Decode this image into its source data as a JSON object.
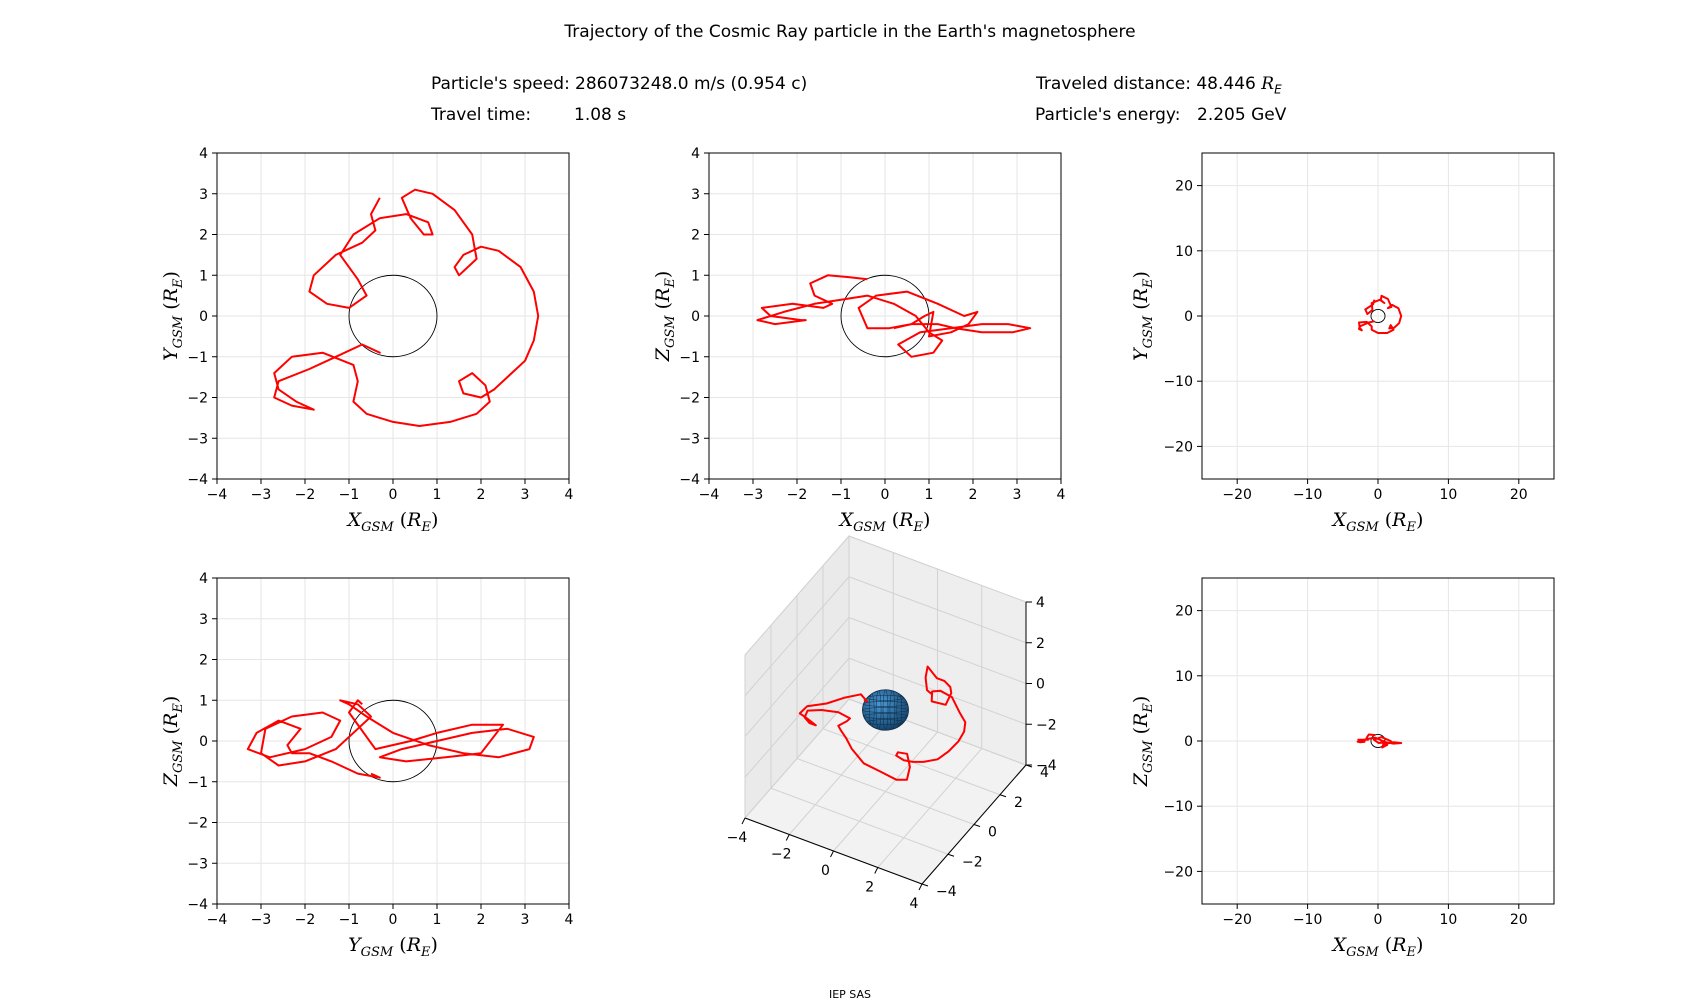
{
  "figure": {
    "title": "Trajectory of the Cosmic Ray particle in the Earth's magnetosphere",
    "speed_label": "Particle's speed:",
    "speed_value": "286073248.0 m/s (0.954 c)",
    "time_label": "Travel time:",
    "time_value": "1.08 s",
    "distance_label": "Traveled distance:",
    "distance_value": "48.446",
    "distance_unit": "R",
    "distance_unit_sub": "E",
    "energy_label": "Particle's energy:",
    "energy_value": "2.205 GeV",
    "footer": "IEP SAS"
  },
  "colors": {
    "trajectory": "#ff0000",
    "earth_fill": "#1f77b4",
    "earth_outline": "#000000",
    "grid": "#e6e6e6",
    "pane": "#f2f2f2"
  },
  "chart_data": [
    {
      "type": "line",
      "projection": "XY",
      "xlabel": "X_GSM (R_E)",
      "ylabel": "Y_GSM (R_E)",
      "xlim": [
        -4,
        4
      ],
      "ylim": [
        -4,
        4
      ],
      "xticks": [
        -4,
        -3,
        -2,
        -1,
        0,
        1,
        2,
        3,
        4
      ],
      "yticks": [
        -4,
        -3,
        -2,
        -1,
        0,
        1,
        2,
        3,
        4
      ],
      "grid": true,
      "earth_circle_radius": 1,
      "series": [
        {
          "x": [
            -0.5,
            -0.3,
            -0.7,
            -1.3,
            -1.9,
            -2.6,
            -2.7,
            -2.3,
            -1.8,
            -2.2,
            -2.6,
            -2.7,
            -2.3,
            -1.6,
            -0.9,
            -0.8,
            -0.9,
            -0.6,
            -0.3,
            0.0,
            0.6,
            1.3,
            1.9,
            2.2,
            2.1,
            1.8,
            1.5,
            1.6,
            2.0,
            2.3,
            2.6,
            3.0,
            3.2,
            3.3,
            3.2,
            2.9,
            2.4,
            2.0,
            1.6,
            1.4,
            1.5,
            1.9,
            1.8,
            1.4,
            0.9,
            0.5,
            0.2,
            0.4,
            0.7,
            0.9,
            0.8,
            0.3,
            -0.3,
            -0.9,
            -1.2,
            -0.8,
            -0.6,
            -1.0,
            -1.5,
            -1.9,
            -1.8,
            -1.3,
            -0.7,
            -0.4,
            -0.5,
            -0.3
          ],
          "y": [
            -0.8,
            -0.9,
            -0.7,
            -1.0,
            -1.3,
            -1.6,
            -2.0,
            -2.2,
            -2.3,
            -2.1,
            -1.8,
            -1.4,
            -1.0,
            -0.9,
            -1.2,
            -1.6,
            -2.1,
            -2.4,
            -2.5,
            -2.6,
            -2.7,
            -2.6,
            -2.4,
            -2.1,
            -1.7,
            -1.4,
            -1.6,
            -1.9,
            -2.0,
            -1.8,
            -1.5,
            -1.1,
            -0.6,
            0.0,
            0.6,
            1.2,
            1.6,
            1.7,
            1.5,
            1.2,
            1.0,
            1.4,
            2.0,
            2.6,
            3.0,
            3.1,
            2.9,
            2.4,
            2.0,
            2.0,
            2.3,
            2.5,
            2.4,
            2.0,
            1.5,
            0.9,
            0.5,
            0.2,
            0.3,
            0.6,
            1.0,
            1.5,
            1.8,
            2.1,
            2.5,
            2.9
          ]
        }
      ]
    },
    {
      "type": "line",
      "projection": "XZ",
      "xlabel": "X_GSM (R_E)",
      "ylabel": "Z_GSM (R_E)",
      "xlim": [
        -4,
        4
      ],
      "ylim": [
        -4,
        4
      ],
      "xticks": [
        -4,
        -3,
        -2,
        -1,
        0,
        1,
        2,
        3,
        4
      ],
      "yticks": [
        -4,
        -3,
        -2,
        -1,
        0,
        1,
        2,
        3,
        4
      ],
      "grid": true,
      "earth_circle_radius": 1,
      "series": [
        {
          "x": [
            -0.4,
            -0.8,
            -1.3,
            -1.7,
            -1.6,
            -1.2,
            -1.4,
            -2.1,
            -2.8,
            -2.6,
            -1.9,
            -1.8,
            -2.5,
            -2.9,
            -2.3,
            -1.6,
            -1.0,
            -0.4,
            0.2,
            0.7,
            1.0,
            1.3,
            1.1,
            0.6,
            0.3,
            0.8,
            1.5,
            2.2,
            2.8,
            3.3,
            2.9,
            2.2,
            1.6,
            1.2,
            0.6,
            0.1,
            -0.4,
            -0.6,
            -0.2,
            0.5,
            1.2,
            1.8,
            2.1,
            1.9,
            1.5,
            1.0,
            1.1,
            0.9,
            0.6,
            0.2
          ],
          "y": [
            0.9,
            0.95,
            1.0,
            0.8,
            0.5,
            0.3,
            0.2,
            0.3,
            0.2,
            0.0,
            -0.1,
            -0.1,
            -0.2,
            -0.1,
            0.1,
            0.3,
            0.4,
            0.5,
            0.3,
            0.0,
            -0.4,
            -0.6,
            -0.9,
            -1.0,
            -0.7,
            -0.4,
            -0.3,
            -0.2,
            -0.2,
            -0.3,
            -0.4,
            -0.4,
            -0.3,
            -0.2,
            -0.2,
            -0.3,
            -0.3,
            0.2,
            0.5,
            0.6,
            0.3,
            0.0,
            0.1,
            -0.2,
            -0.4,
            -0.5,
            0.1,
            0.0,
            -0.2,
            -0.3
          ]
        }
      ]
    },
    {
      "type": "line",
      "projection": "XY-wide",
      "xlabel": "X_GSM (R_E)",
      "ylabel": "Y_GSM (R_E)",
      "xlim": [
        -25,
        25
      ],
      "ylim": [
        -25,
        25
      ],
      "xticks": [
        -20,
        -10,
        0,
        10,
        20
      ],
      "yticks": [
        -20,
        -10,
        0,
        10,
        20
      ],
      "grid": true,
      "earth_circle_radius": 1,
      "series": [
        {
          "x": [
            -0.5,
            -1.3,
            -2.6,
            -2.7,
            -2.3,
            -2.6,
            -2.7,
            -1.6,
            -0.9,
            -0.9,
            0.0,
            1.3,
            2.2,
            1.8,
            1.6,
            2.3,
            3.0,
            3.3,
            2.9,
            2.0,
            1.4,
            1.9,
            1.4,
            0.5,
            0.4,
            0.9,
            0.3,
            -0.9,
            -0.8,
            -1.5,
            -1.8,
            -0.7,
            -0.5
          ],
          "y": [
            -0.8,
            -1.0,
            -1.6,
            -2.0,
            -2.2,
            -1.8,
            -1.0,
            -0.9,
            -1.6,
            -2.1,
            -2.6,
            -2.6,
            -2.1,
            -1.4,
            -1.9,
            -1.8,
            -1.1,
            0.0,
            1.2,
            1.7,
            1.2,
            1.4,
            2.6,
            3.1,
            2.4,
            2.0,
            2.5,
            2.0,
            0.9,
            0.3,
            1.0,
            1.8,
            2.5
          ]
        }
      ]
    },
    {
      "type": "line",
      "projection": "YZ",
      "xlabel": "Y_GSM (R_E)",
      "ylabel": "Z_GSM (R_E)",
      "xlim": [
        -4,
        4
      ],
      "ylim": [
        -4,
        4
      ],
      "xticks": [
        -4,
        -3,
        -2,
        -1,
        0,
        1,
        2,
        3,
        4
      ],
      "yticks": [
        -4,
        -3,
        -2,
        -1,
        0,
        1,
        2,
        3,
        4
      ],
      "grid": true,
      "earth_circle_radius": 1,
      "series": [
        {
          "x": [
            -0.5,
            -0.3,
            -0.8,
            -1.4,
            -1.9,
            -2.3,
            -2.4,
            -2.1,
            -2.6,
            -3.1,
            -3.3,
            -2.8,
            -2.0,
            -1.4,
            -1.2,
            -1.6,
            -2.3,
            -2.9,
            -3.0,
            -2.6,
            -2.0,
            -1.3,
            -0.8,
            -0.5,
            -0.8,
            -1.2,
            -1.0,
            -0.6,
            0.0,
            0.8,
            1.6,
            2.4,
            3.1,
            3.2,
            2.6,
            1.8,
            1.0,
            0.2,
            -0.3,
            0.3,
            1.2,
            2.0,
            2.5,
            1.8,
            1.0,
            0.4,
            -0.4,
            -1.0,
            -0.8,
            -0.7
          ],
          "y": [
            -0.8,
            -0.9,
            -0.8,
            -0.5,
            -0.3,
            -0.3,
            -0.1,
            0.3,
            0.5,
            0.2,
            -0.2,
            -0.4,
            -0.2,
            0.1,
            0.5,
            0.7,
            0.6,
            0.3,
            -0.3,
            -0.6,
            -0.5,
            -0.2,
            0.3,
            0.6,
            0.9,
            1.0,
            0.9,
            0.6,
            0.2,
            -0.1,
            -0.3,
            -0.4,
            -0.2,
            0.1,
            0.3,
            0.2,
            0.0,
            -0.2,
            -0.4,
            -0.5,
            -0.4,
            -0.3,
            0.4,
            0.4,
            0.2,
            0.0,
            -0.2,
            0.7,
            1.0,
            0.9
          ]
        }
      ]
    },
    {
      "type": "line",
      "projection": "3D",
      "xticks": [
        -4,
        -2,
        0,
        2,
        4
      ],
      "yticks": [
        -4,
        -2,
        0,
        2,
        4
      ],
      "zticks": [
        -4,
        -2,
        0,
        2,
        4
      ],
      "xlim": [
        -4,
        4
      ],
      "ylim": [
        -4,
        4
      ],
      "zlim": [
        -4,
        4
      ],
      "grid": true,
      "earth_sphere_radius": 1
    },
    {
      "type": "line",
      "projection": "XZ-wide",
      "xlabel": "X_GSM (R_E)",
      "ylabel": "Z_GSM (R_E)",
      "xlim": [
        -25,
        25
      ],
      "ylim": [
        -25,
        25
      ],
      "xticks": [
        -20,
        -10,
        0,
        10,
        20
      ],
      "yticks": [
        -20,
        -10,
        0,
        10,
        20
      ],
      "grid": true,
      "earth_circle_radius": 1,
      "series": [
        {
          "x": [
            -0.4,
            -1.3,
            -1.6,
            -1.4,
            -2.8,
            -1.9,
            -2.5,
            -2.9,
            -1.6,
            -0.4,
            0.7,
            1.3,
            0.6,
            0.8,
            2.2,
            3.3,
            2.2,
            1.2,
            0.1,
            -0.6,
            0.5,
            1.8,
            1.9,
            1.0,
            0.9,
            0.2
          ],
          "y": [
            0.9,
            1.0,
            0.5,
            0.2,
            0.2,
            -0.1,
            -0.2,
            -0.1,
            0.3,
            0.5,
            0.0,
            -0.6,
            -1.0,
            -0.4,
            -0.2,
            -0.3,
            -0.4,
            -0.2,
            -0.3,
            0.2,
            0.6,
            0.0,
            -0.2,
            -0.5,
            0.0,
            -0.3
          ]
        }
      ]
    }
  ]
}
